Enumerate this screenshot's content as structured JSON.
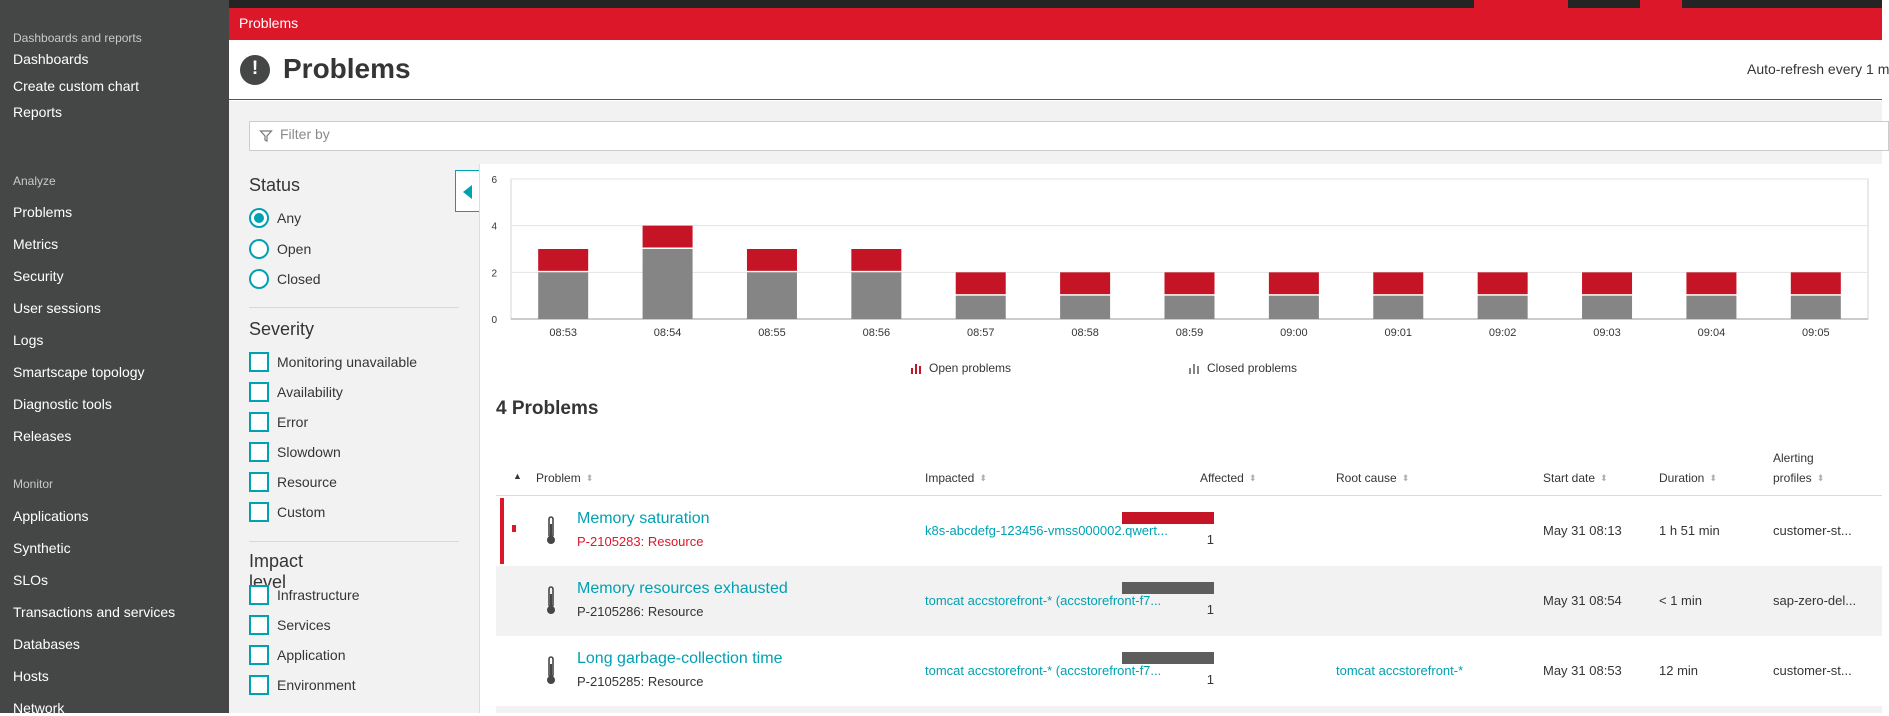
{
  "nav": {
    "sections": [
      {
        "title": "Dashboards and reports",
        "items": [
          "Dashboards",
          "Create custom chart",
          "Reports"
        ]
      },
      {
        "title": "Analyze",
        "items": [
          "Problems",
          "Metrics",
          "Security",
          "User sessions",
          "Logs",
          "Smartscape topology",
          "Diagnostic tools",
          "Releases"
        ]
      },
      {
        "title": "Monitor",
        "items": [
          "Applications",
          "Synthetic",
          "SLOs",
          "Transactions and services",
          "Databases",
          "Hosts",
          "Network"
        ]
      }
    ]
  },
  "breadcrumb": "Problems",
  "header": {
    "title": "Problems",
    "refresh": "Auto-refresh every 1 m",
    "icon": "alert-icon"
  },
  "filter": {
    "placeholder": "Filter by"
  },
  "status": {
    "title": "Status",
    "options": [
      "Any",
      "Open",
      "Closed"
    ],
    "selected": "Any"
  },
  "severity": {
    "title": "Severity",
    "options": [
      "Monitoring unavailable",
      "Availability",
      "Error",
      "Slowdown",
      "Resource",
      "Custom"
    ]
  },
  "impact": {
    "title": "Impact level",
    "options": [
      "Infrastructure",
      "Services",
      "Application",
      "Environment"
    ]
  },
  "colors": {
    "accent": "#dc172a",
    "link": "#00a1b2",
    "open": "#c41425",
    "closed": "#858585",
    "nav": "#454646"
  },
  "chart_data": {
    "type": "bar",
    "stacked": true,
    "categories": [
      "08:53",
      "08:54",
      "08:55",
      "08:56",
      "08:57",
      "08:58",
      "08:59",
      "09:00",
      "09:01",
      "09:02",
      "09:03",
      "09:04",
      "09:05"
    ],
    "series": [
      {
        "name": "Closed problems",
        "color": "#858585",
        "values": [
          2,
          3,
          2,
          2,
          1,
          1,
          1,
          1,
          1,
          1,
          1,
          1,
          1
        ]
      },
      {
        "name": "Open problems",
        "color": "#c41425",
        "values": [
          1,
          1,
          1,
          1,
          1,
          1,
          1,
          1,
          1,
          1,
          1,
          1,
          1
        ]
      }
    ],
    "ylim": [
      0,
      6
    ],
    "yticks": [
      0,
      2,
      4,
      6
    ],
    "grid": true,
    "legend": [
      "Open problems",
      "Closed problems"
    ],
    "legend_position": "bottom"
  },
  "problems_count": "4 Problems",
  "table": {
    "headers": {
      "problem": "Problem",
      "impacted": "Impacted",
      "affected": "Affected",
      "root": "Root cause",
      "start": "Start date",
      "duration": "Duration",
      "profiles_1": "Alerting",
      "profiles_2": "profiles"
    },
    "rows": [
      {
        "name": "Memory saturation",
        "id": "P-2105283: Resource",
        "open": true,
        "impacted": "k8s-abcdefg-123456-vmss000002.qwert...",
        "affected": "1",
        "root": "",
        "start": "May 31 08:13",
        "duration": "1 h 51 min",
        "profile": "customer-st..."
      },
      {
        "name": "Memory resources exhausted",
        "id": "P-2105286: Resource",
        "open": false,
        "impacted": "tomcat accstorefront-* (accstorefront-f7...",
        "affected": "1",
        "root": "",
        "start": "May 31 08:54",
        "duration": "< 1 min",
        "profile": "sap-zero-del..."
      },
      {
        "name": "Long garbage-collection time",
        "id": "P-2105285: Resource",
        "open": false,
        "impacted": "tomcat accstorefront-* (accstorefront-f7...",
        "affected": "1",
        "root": "tomcat accstorefront-*",
        "start": "May 31 08:53",
        "duration": "12 min",
        "profile": "customer-st..."
      }
    ]
  }
}
